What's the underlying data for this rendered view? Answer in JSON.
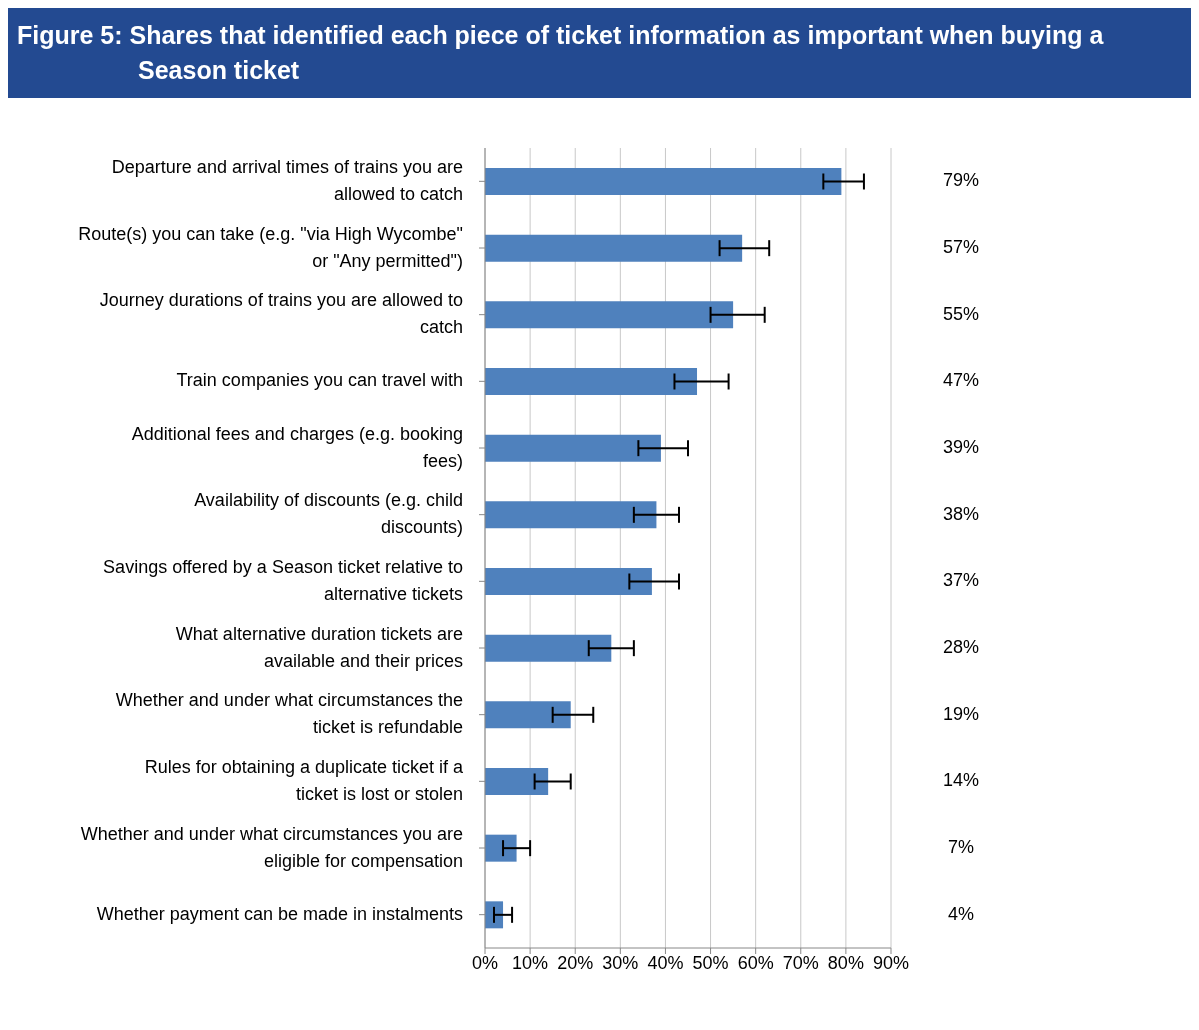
{
  "chart_data": {
    "type": "bar",
    "orientation": "horizontal",
    "title": "Figure 5:  Shares that identified each piece of ticket information as important when buying a Season ticket",
    "categories": [
      "Departure and arrival times of trains you are allowed to catch",
      "Route(s) you can take (e.g. \"via High Wycombe\" or \"Any permitted\")",
      "Journey durations of trains you are allowed to catch",
      "Train companies you can travel with",
      "Additional fees and charges (e.g. booking fees)",
      "Availability of discounts (e.g. child discounts)",
      "Savings offered by a Season ticket relative to alternative tickets",
      "What alternative duration tickets are available and their prices",
      "Whether and under what circumstances the ticket is refundable",
      "Rules for obtaining a duplicate ticket if a ticket is lost or stolen",
      "Whether and under what circumstances you are eligible for compensation",
      "Whether payment can be made in instalments"
    ],
    "values": [
      79,
      57,
      55,
      47,
      39,
      38,
      37,
      28,
      19,
      14,
      7,
      4
    ],
    "errors": [
      [
        75,
        84
      ],
      [
        52,
        63
      ],
      [
        50,
        62
      ],
      [
        42,
        54
      ],
      [
        34,
        45
      ],
      [
        33,
        43
      ],
      [
        32,
        43
      ],
      [
        23,
        33
      ],
      [
        15,
        24
      ],
      [
        11,
        19
      ],
      [
        4,
        10
      ],
      [
        2,
        6
      ]
    ],
    "value_labels": [
      "79%",
      "57%",
      "55%",
      "47%",
      "39%",
      "38%",
      "37%",
      "28%",
      "19%",
      "14%",
      "7%",
      "4%"
    ],
    "color": "#4f81bd",
    "grid": "x",
    "legend": false,
    "xlim": [
      0,
      90
    ],
    "xticks": [
      {
        "value": 0,
        "label": "0%"
      },
      {
        "value": 10,
        "label": "10%"
      },
      {
        "value": 20,
        "label": "20%"
      },
      {
        "value": 30,
        "label": "30%"
      },
      {
        "value": 40,
        "label": "40%"
      },
      {
        "value": 50,
        "label": "50%"
      },
      {
        "value": 60,
        "label": "60%"
      },
      {
        "value": 70,
        "label": "70%"
      },
      {
        "value": 80,
        "label": "80%"
      },
      {
        "value": 90,
        "label": "90%"
      }
    ]
  }
}
